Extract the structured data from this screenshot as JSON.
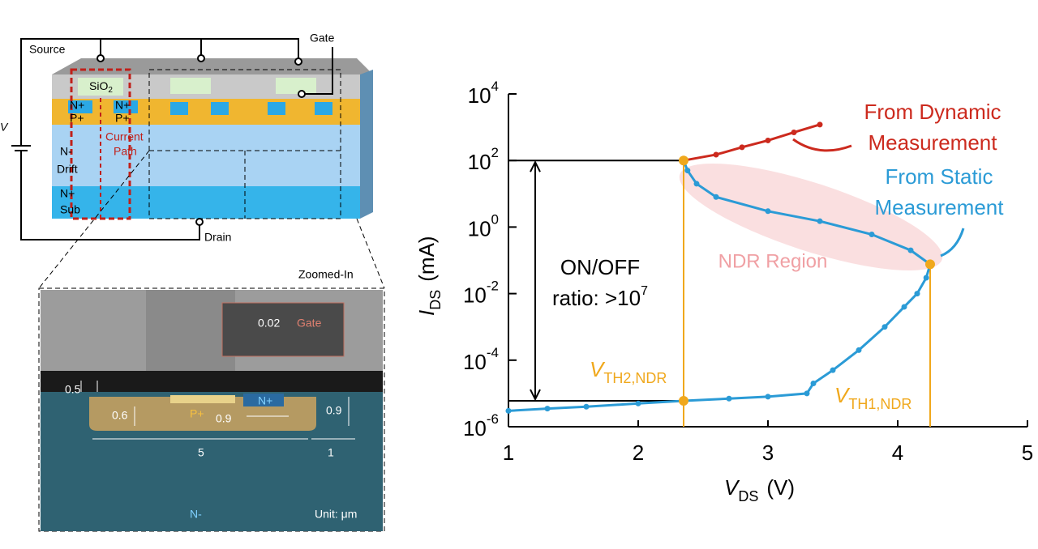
{
  "chart_data": {
    "type": "line",
    "log_y": true,
    "x_label": "V",
    "x_label_sub": "DS",
    "x_label_unit": "(V)",
    "y_label": "I",
    "y_label_sub": "DS",
    "y_label_unit": "(mA)",
    "xlim": [
      1,
      5
    ],
    "xticks": [
      1,
      2,
      3,
      4,
      5
    ],
    "ylim": [
      1e-06,
      10000
    ],
    "yticks": [
      {
        "value": 1e-06,
        "label": "10",
        "sup": "-6"
      },
      {
        "value": 0.0001,
        "label": "10",
        "sup": "-4"
      },
      {
        "value": 0.01,
        "label": "10",
        "sup": "-2"
      },
      {
        "value": 1,
        "label": "10",
        "sup": "0"
      },
      {
        "value": 100,
        "label": "10",
        "sup": "2"
      },
      {
        "value": 10000,
        "label": "10",
        "sup": "4"
      }
    ],
    "series": [
      {
        "name": "From Static Measurement",
        "color": "#2b9bd6",
        "x": [
          1.0,
          1.3,
          1.6,
          2.0,
          2.35,
          2.7,
          3.0,
          3.3,
          3.35,
          3.5,
          3.7,
          3.9,
          4.05,
          4.15,
          4.22,
          4.25,
          4.1,
          3.8,
          3.4,
          3.0,
          2.6,
          2.45,
          2.38,
          2.35
        ],
        "values": [
          3e-06,
          3.5e-06,
          4e-06,
          5e-06,
          6e-06,
          7e-06,
          8e-06,
          1e-05,
          2e-05,
          5e-05,
          0.0002,
          0.001,
          0.004,
          0.01,
          0.03,
          0.076,
          0.2,
          0.6,
          1.5,
          3,
          8,
          20,
          50,
          100
        ]
      },
      {
        "name": "From Dynamic Measurement",
        "color": "#cc2a1e",
        "x": [
          2.35,
          2.6,
          2.8,
          3.0,
          3.2,
          3.4
        ],
        "values": [
          100,
          150,
          250,
          400,
          700,
          1200
        ]
      }
    ],
    "markers": {
      "color": "#f0a81c",
      "x": [
        2.35,
        2.35,
        4.25
      ],
      "values": [
        100,
        6e-06,
        0.076
      ]
    },
    "thresholds": [
      {
        "label": "V",
        "sub": "TH2,NDR",
        "x": 2.35
      },
      {
        "label": "V",
        "sub": "TH1,NDR",
        "x": 4.25
      }
    ],
    "annotations": {
      "dynamic": [
        "From Dynamic",
        "Measurement"
      ],
      "static": [
        "From Static",
        "Measurement"
      ],
      "ndr": "NDR Region",
      "ratio": [
        "ON/OFF",
        "ratio: >10",
        "7"
      ]
    }
  },
  "diagram": {
    "labels": [
      "Source",
      "Gate",
      "V",
      "SiO",
      "2",
      "N+",
      "N+",
      "P+",
      "P+",
      "Current",
      "Path",
      "N-",
      "Drift",
      "N+",
      "Sub",
      "Drain",
      "Zoomed-In",
      "0.02",
      "Gate",
      "0.5",
      "N+",
      "0.6",
      "P+",
      "0.9",
      "0.9",
      "5",
      "1",
      "N-",
      "Unit: μm"
    ]
  }
}
